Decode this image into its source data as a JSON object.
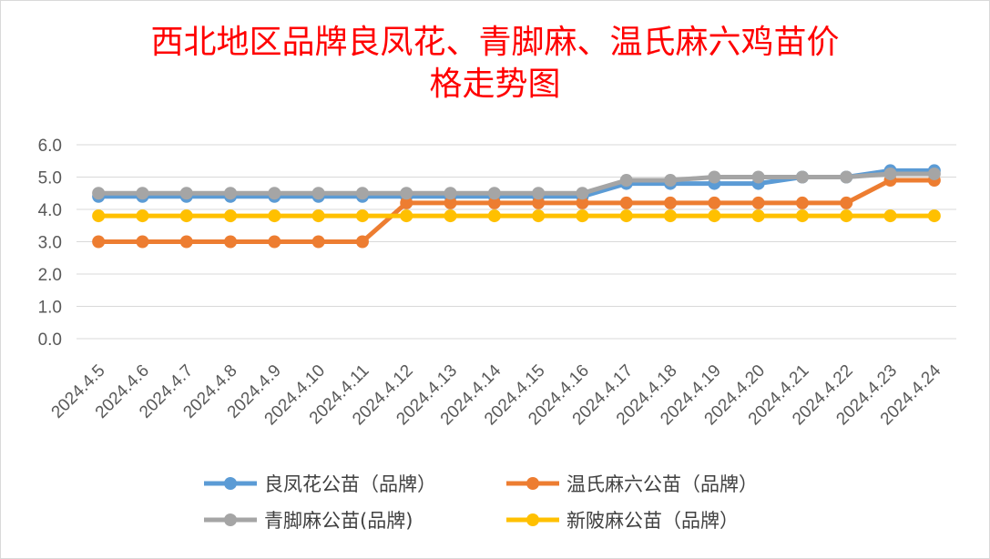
{
  "chart_data": {
    "type": "line",
    "title": [
      "西北地区品牌良凤花、青脚麻、温氏麻六鸡苗价",
      "格走势图"
    ],
    "xlabel": "",
    "ylabel": "",
    "ylim": [
      0,
      6
    ],
    "yticks": [
      "0.0",
      "1.0",
      "2.0",
      "3.0",
      "4.0",
      "5.0",
      "6.0"
    ],
    "grid": true,
    "legend_position": "bottom",
    "categories": [
      "2024.4.5",
      "2024.4.6",
      "2024.4.7",
      "2024.4.8",
      "2024.4.9",
      "2024.4.10",
      "2024.4.11",
      "2024.4.12",
      "2024.4.13",
      "2024.4.14",
      "2024.4.15",
      "2024.4.16",
      "2024.4.17",
      "2024.4.18",
      "2024.4.19",
      "2024.4.20",
      "2024.4.21",
      "2024.4.22",
      "2024.4.23",
      "2024.4.24"
    ],
    "series": [
      {
        "name": "良凤花公苗（品牌）",
        "color": "#5b9bd5",
        "values": [
          4.4,
          4.4,
          4.4,
          4.4,
          4.4,
          4.4,
          4.4,
          4.4,
          4.4,
          4.4,
          4.4,
          4.4,
          4.8,
          4.8,
          4.8,
          4.8,
          5.0,
          5.0,
          5.2,
          5.2
        ]
      },
      {
        "name": "温氏麻六公苗（品牌）",
        "color": "#ed7d31",
        "values": [
          3.0,
          3.0,
          3.0,
          3.0,
          3.0,
          3.0,
          3.0,
          4.2,
          4.2,
          4.2,
          4.2,
          4.2,
          4.2,
          4.2,
          4.2,
          4.2,
          4.2,
          4.2,
          4.9,
          4.9
        ]
      },
      {
        "name": "青脚麻公苗(品牌)",
        "color": "#a5a5a5",
        "values": [
          4.5,
          4.5,
          4.5,
          4.5,
          4.5,
          4.5,
          4.5,
          4.5,
          4.5,
          4.5,
          4.5,
          4.5,
          4.9,
          4.9,
          5.0,
          5.0,
          5.0,
          5.0,
          5.1,
          5.1
        ]
      },
      {
        "name": "新陂麻公苗（品牌）",
        "color": "#ffc000",
        "values": [
          3.8,
          3.8,
          3.8,
          3.8,
          3.8,
          3.8,
          3.8,
          3.8,
          3.8,
          3.8,
          3.8,
          3.8,
          3.8,
          3.8,
          3.8,
          3.8,
          3.8,
          3.8,
          3.8,
          3.8
        ]
      }
    ]
  }
}
